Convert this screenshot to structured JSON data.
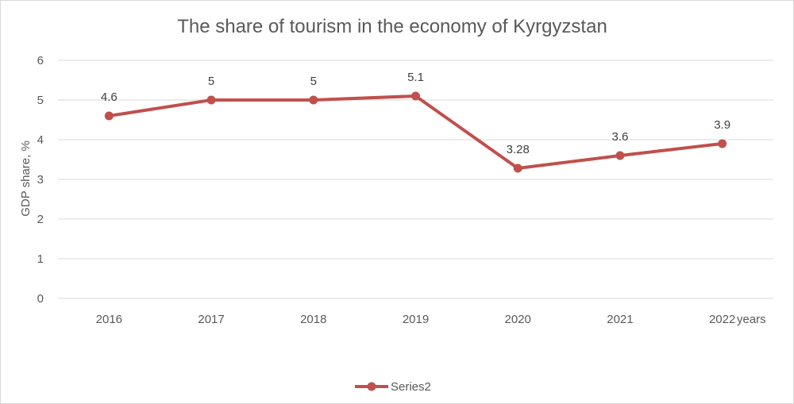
{
  "chart_data": {
    "type": "line",
    "title": "The share of tourism in the economy of Kyrgyzstan",
    "xlabel": "years",
    "ylabel": "GDP share, %",
    "categories": [
      "2016",
      "2017",
      "2018",
      "2019",
      "2020",
      "2021",
      "2022"
    ],
    "series": [
      {
        "name": "Series2",
        "values": [
          4.6,
          5,
          5,
          5.1,
          3.28,
          3.6,
          3.9
        ],
        "color": "#c0504d"
      }
    ],
    "ylim": [
      0,
      6
    ],
    "yticks": [
      "0",
      "1",
      "2",
      "3",
      "4",
      "5",
      "6"
    ],
    "grid": true,
    "legend_position": "bottom"
  }
}
